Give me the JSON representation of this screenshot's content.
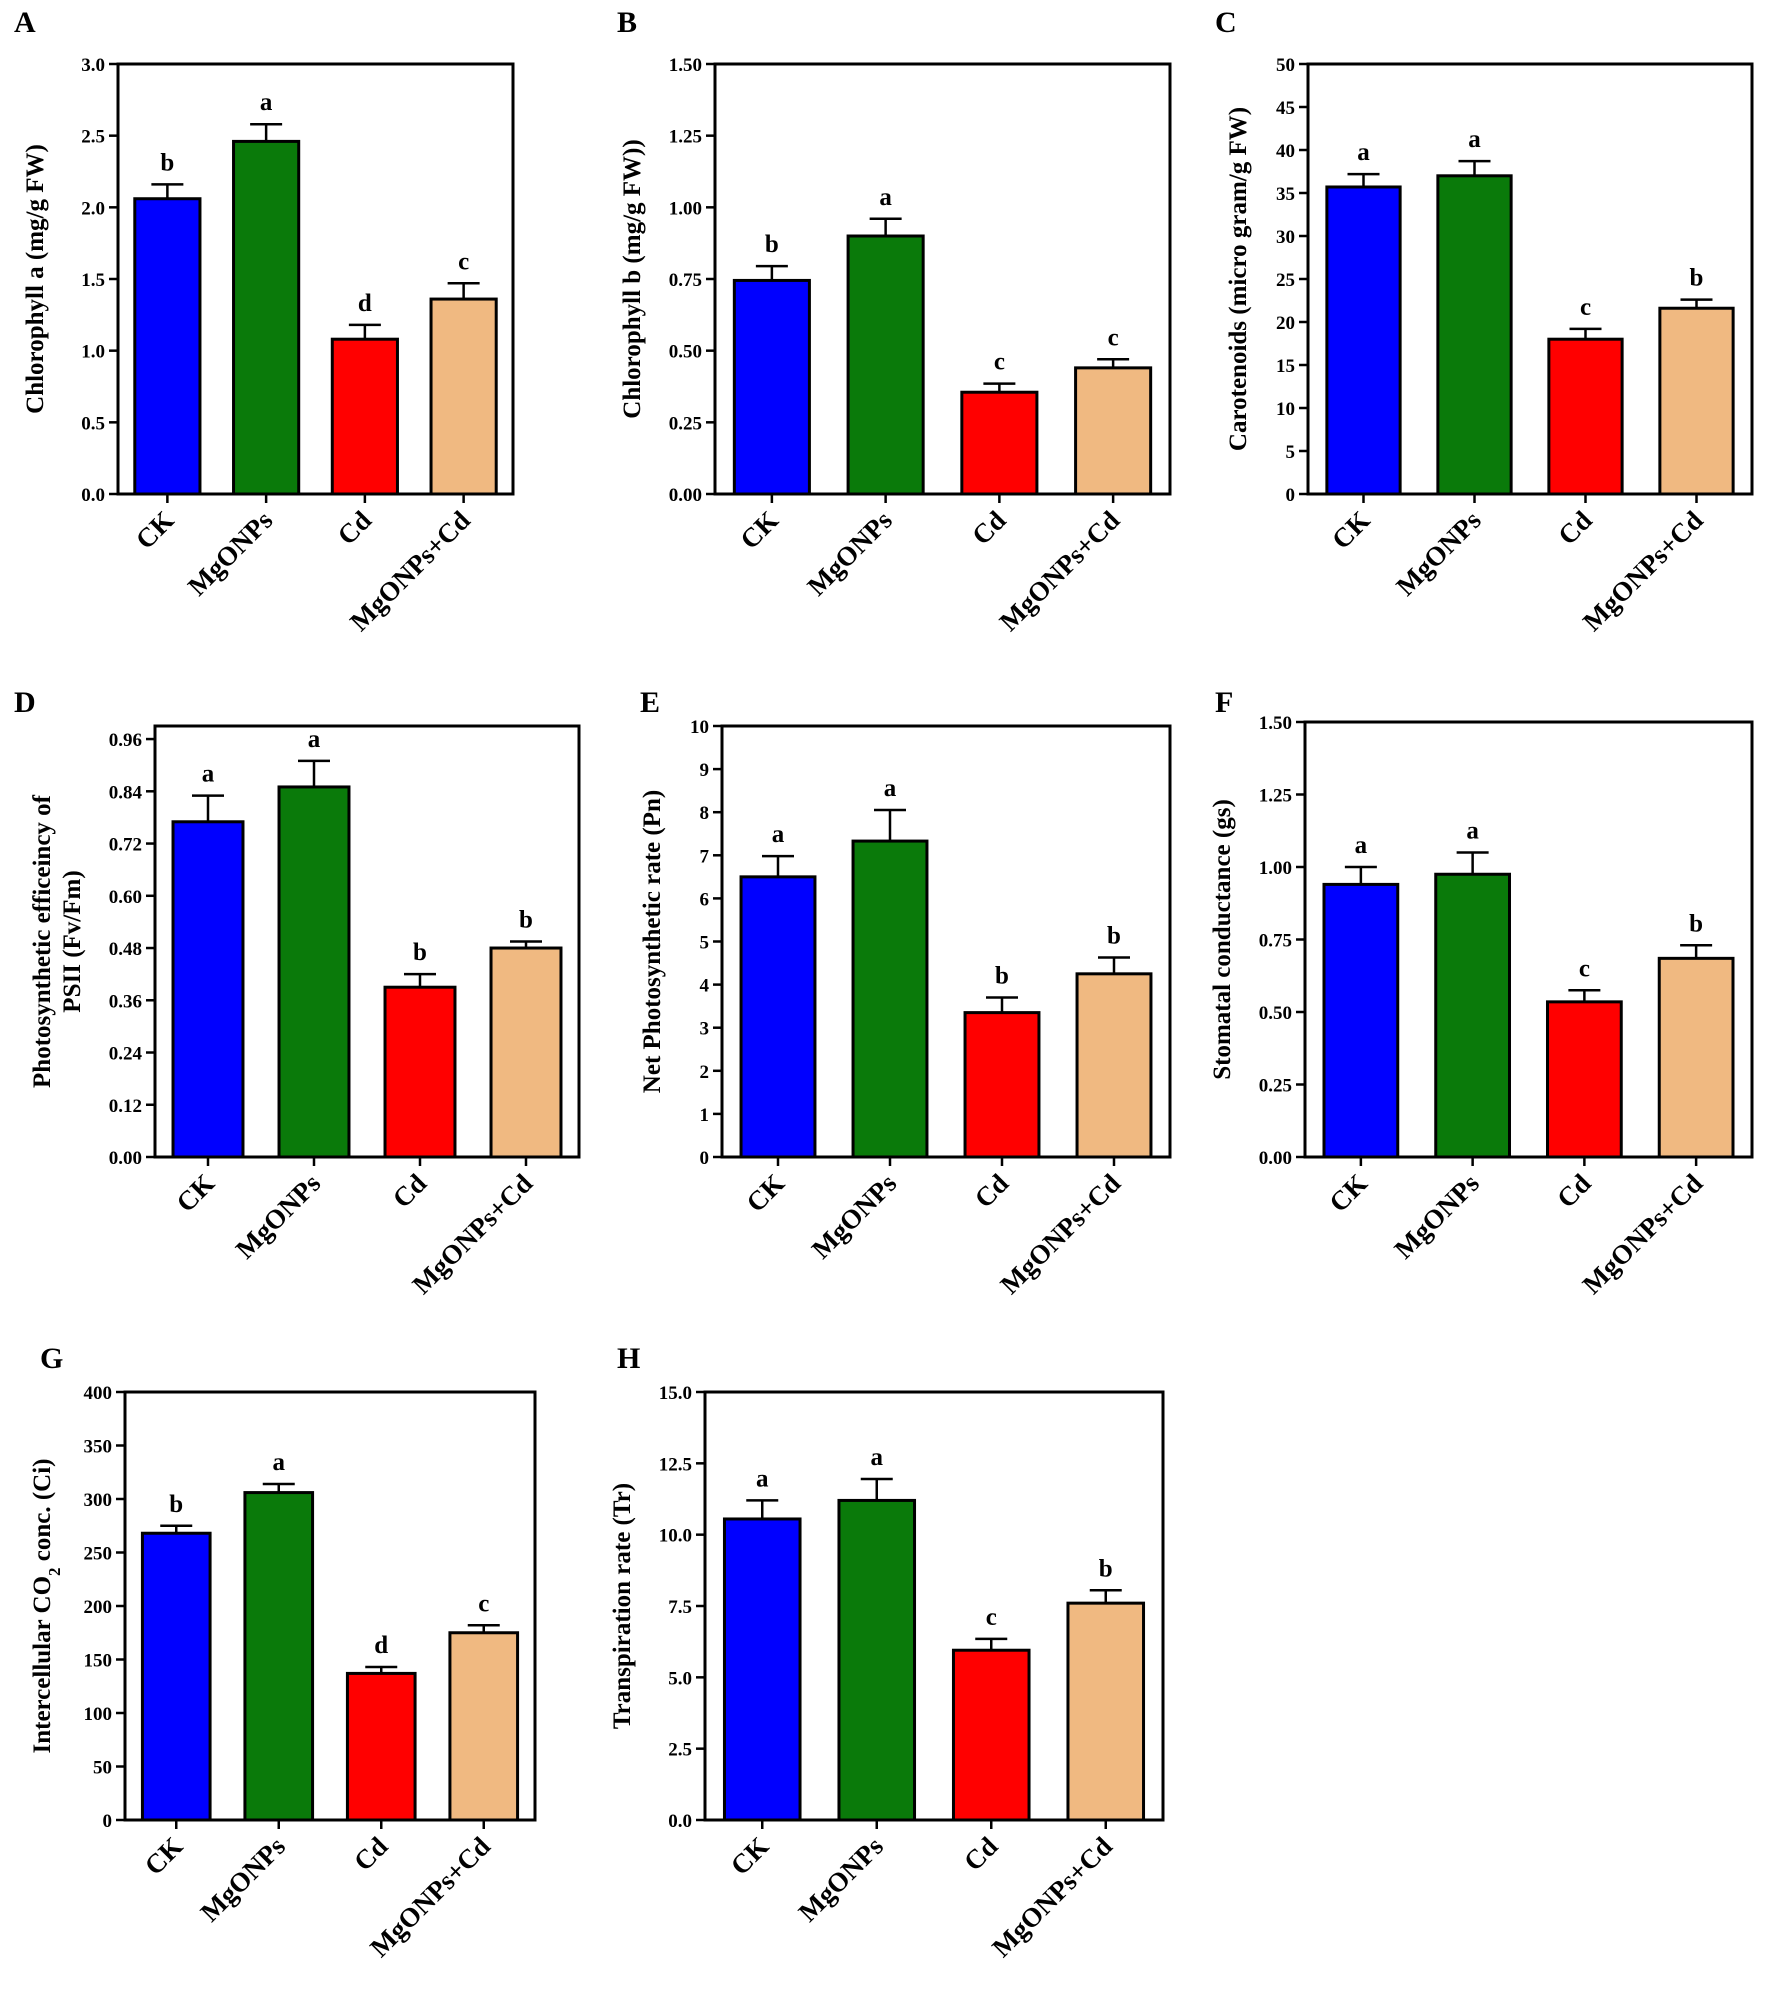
{
  "colors": {
    "CK": "#0000ff",
    "MgONPs": "#0a7a0a",
    "Cd": "#ff0000",
    "MgONPs+Cd": "#f0b981",
    "axis": "#000000"
  },
  "chart_data": [
    {
      "type": "bar",
      "panel": "A",
      "categories": [
        "CK",
        "MgONPs",
        "Cd",
        "MgONPs+Cd"
      ],
      "values": [
        2.06,
        2.46,
        1.08,
        1.36
      ],
      "errors": [
        0.1,
        0.12,
        0.1,
        0.11
      ],
      "letters": [
        "b",
        "a",
        "d",
        "c"
      ],
      "ylabel": "Chlorophyll a (mg/g FW)",
      "ylabel_lines": [
        "Chlorophyll a (mg/g FW)"
      ],
      "ylim": [
        0,
        3.0
      ],
      "yticks": [
        "0.0",
        "0.5",
        "1.0",
        "1.5",
        "2.0",
        "2.5",
        "3.0"
      ]
    },
    {
      "type": "bar",
      "panel": "B",
      "categories": [
        "CK",
        "MgONPs",
        "Cd",
        "MgONPs+Cd"
      ],
      "values": [
        0.745,
        0.9,
        0.355,
        0.44
      ],
      "errors": [
        0.05,
        0.06,
        0.03,
        0.03
      ],
      "letters": [
        "b",
        "a",
        "c",
        "c"
      ],
      "ylabel": "Chlorophyll b (mg/g FW))",
      "ylabel_lines": [
        "Chlorophyll b (mg/g FW))"
      ],
      "ylim": [
        0,
        1.5
      ],
      "yticks": [
        "0.00",
        "0.25",
        "0.50",
        "0.75",
        "1.00",
        "1.25",
        "1.50"
      ]
    },
    {
      "type": "bar",
      "panel": "C",
      "categories": [
        "CK",
        "MgONPs",
        "Cd",
        "MgONPs+Cd"
      ],
      "values": [
        35.7,
        37.0,
        18.0,
        21.6
      ],
      "errors": [
        1.5,
        1.7,
        1.2,
        1.0
      ],
      "letters": [
        "a",
        "a",
        "c",
        "b"
      ],
      "ylabel": "Carotenoids (micro gram/g FW)",
      "ylabel_lines": [
        "Carotenoids (micro gram/g FW)"
      ],
      "ylim": [
        0,
        50
      ],
      "yticks": [
        "0",
        "5",
        "10",
        "15",
        "20",
        "25",
        "30",
        "35",
        "40",
        "45",
        "50"
      ]
    },
    {
      "type": "bar",
      "panel": "D",
      "categories": [
        "CK",
        "MgONPs",
        "Cd",
        "MgONPs+Cd"
      ],
      "values": [
        0.77,
        0.85,
        0.39,
        0.48
      ],
      "errors": [
        0.06,
        0.06,
        0.03,
        0.015
      ],
      "letters": [
        "a",
        "a",
        "b",
        "b"
      ],
      "ylabel": "Photosynthetic efficeincy of PSII (Fv/Fm)",
      "ylabel_lines": [
        "Photosynthetic efficeincy of",
        "PSII (Fv/Fm)"
      ],
      "ylim": [
        0,
        0.99
      ],
      "yticks": [
        "0.00",
        "0.12",
        "0.24",
        "0.36",
        "0.48",
        "0.60",
        "0.72",
        "0.84",
        "0.96"
      ]
    },
    {
      "type": "bar",
      "panel": "E",
      "categories": [
        "CK",
        "MgONPs",
        "Cd",
        "MgONPs+Cd"
      ],
      "values": [
        6.5,
        7.33,
        3.35,
        4.25
      ],
      "errors": [
        0.48,
        0.72,
        0.35,
        0.38
      ],
      "letters": [
        "a",
        "a",
        "b",
        "b"
      ],
      "ylabel": "Net Photosynthetic rate (Pn)",
      "ylabel_lines": [
        "Net Photosynthetic rate (Pn)"
      ],
      "ylim": [
        0,
        10
      ],
      "yticks": [
        "0",
        "1",
        "2",
        "3",
        "4",
        "5",
        "6",
        "7",
        "8",
        "9",
        "10"
      ]
    },
    {
      "type": "bar",
      "panel": "F",
      "categories": [
        "CK",
        "MgONPs",
        "Cd",
        "MgONPs+Cd"
      ],
      "values": [
        0.94,
        0.975,
        0.535,
        0.685
      ],
      "errors": [
        0.06,
        0.075,
        0.04,
        0.045
      ],
      "letters": [
        "a",
        "a",
        "c",
        "b"
      ],
      "ylabel": "Stomatal conductance (gs)",
      "ylabel_lines": [
        "Stomatal conductance (gs)"
      ],
      "ylim": [
        0,
        1.5
      ],
      "yticks": [
        "0.00",
        "0.25",
        "0.50",
        "0.75",
        "1.00",
        "1.25",
        "1.50"
      ]
    },
    {
      "type": "bar",
      "panel": "G",
      "categories": [
        "CK",
        "MgONPs",
        "Cd",
        "MgONPs+Cd"
      ],
      "values": [
        268,
        306,
        137,
        175
      ],
      "errors": [
        7,
        8,
        6,
        7
      ],
      "letters": [
        "b",
        "a",
        "d",
        "c"
      ],
      "ylabel": "Intercellular CO2 conc. (Ci)",
      "ylabel_lines": [
        "Intercellular CO2 conc. (Ci)"
      ],
      "ylim": [
        0,
        400
      ],
      "yticks": [
        "0",
        "50",
        "100",
        "150",
        "200",
        "250",
        "300",
        "350",
        "400"
      ]
    },
    {
      "type": "bar",
      "panel": "H",
      "categories": [
        "CK",
        "MgONPs",
        "Cd",
        "MgONPs+Cd"
      ],
      "values": [
        10.55,
        11.2,
        5.95,
        7.6
      ],
      "errors": [
        0.65,
        0.75,
        0.4,
        0.45
      ],
      "letters": [
        "a",
        "a",
        "c",
        "b"
      ],
      "ylabel": "Transpiration rate (Tr)",
      "ylabel_lines": [
        "Transpiration rate (Tr)"
      ],
      "ylim": [
        0,
        15
      ],
      "yticks": [
        "0.0",
        "2.5",
        "5.0",
        "7.5",
        "10.0",
        "12.5",
        "15.0"
      ]
    }
  ]
}
